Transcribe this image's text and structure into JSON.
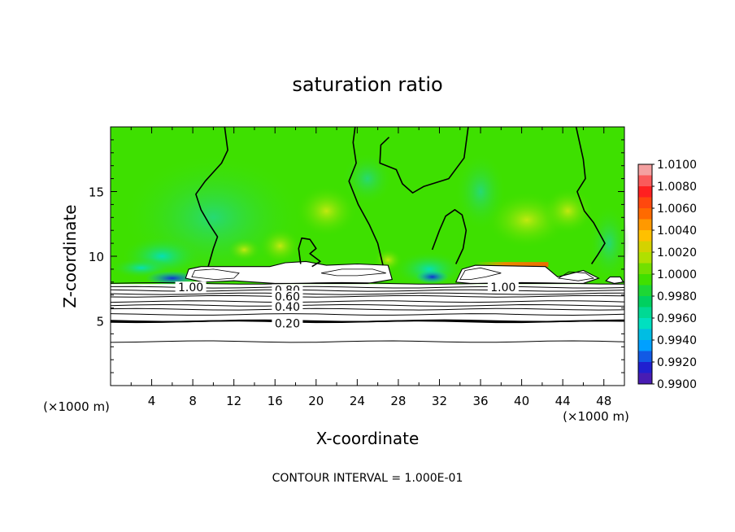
{
  "chart_data": {
    "type": "heatmap",
    "title": "saturation ratio",
    "xlabel": "X-coordinate",
    "ylabel": "Z-coordinate",
    "x_unit_left": "(×1000 m)",
    "x_unit_right": "(×1000 m)",
    "xlim": [
      0,
      50
    ],
    "ylim": [
      0,
      20
    ],
    "x_ticks": [
      4,
      8,
      12,
      16,
      20,
      24,
      28,
      32,
      36,
      40,
      44,
      48
    ],
    "y_ticks": [
      5,
      10,
      15
    ],
    "colorbar": {
      "levels": [
        "1.0100",
        "1.0080",
        "1.0060",
        "1.0040",
        "1.0020",
        "1.0000",
        "0.9980",
        "0.9960",
        "0.9940",
        "0.9920",
        "0.9900"
      ],
      "colors": [
        "#f4a0a0",
        "#ff2020",
        "#ff6a00",
        "#ffc000",
        "#b0e000",
        "#40e000",
        "#00d060",
        "#00e0c0",
        "#00a0ff",
        "#2020d0",
        "#6a1a9a"
      ]
    },
    "contour_labels": [
      {
        "text": "1.00",
        "x": 7.8,
        "z": 7.6
      },
      {
        "text": "0.80",
        "x": 17.2,
        "z": 7.4
      },
      {
        "text": "0.60",
        "x": 17.2,
        "z": 6.9
      },
      {
        "text": "0.40",
        "x": 17.2,
        "z": 6.1
      },
      {
        "text": "0.20",
        "x": 17.2,
        "z": 4.8
      },
      {
        "text": "1.00",
        "x": 38.2,
        "z": 7.6
      }
    ],
    "contour_levels_below": [
      7.9,
      7.6,
      7.35,
      7.1,
      6.9,
      6.5,
      6.2,
      5.9,
      5.5,
      5.0,
      4.95,
      3.4
    ],
    "footer": "CONTOUR INTERVAL = 1.000E-01"
  }
}
